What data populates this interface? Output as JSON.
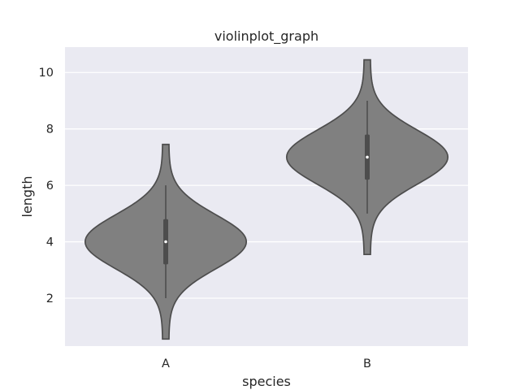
{
  "chart_data": {
    "type": "violin",
    "title": "violinplot_graph",
    "xlabel": "species",
    "ylabel": "length",
    "categories": [
      "A",
      "B"
    ],
    "ylim": [
      0.3,
      10.9
    ],
    "yticks": [
      2,
      4,
      6,
      8,
      10
    ],
    "grid": true,
    "fill_color": "#808080",
    "edge_color": "#4d4d4d",
    "background_color": "#eaeaf2",
    "violins": [
      {
        "category": "A",
        "min": 2.0,
        "q1": 3.2,
        "median": 4.0,
        "q3": 4.8,
        "max": 6.0,
        "kde_low": 0.55,
        "kde_high": 7.45,
        "peak": 4.0
      },
      {
        "category": "B",
        "min": 5.0,
        "q1": 6.2,
        "median": 7.0,
        "q3": 7.8,
        "max": 9.0,
        "kde_low": 3.55,
        "kde_high": 10.45,
        "peak": 7.0
      }
    ]
  }
}
